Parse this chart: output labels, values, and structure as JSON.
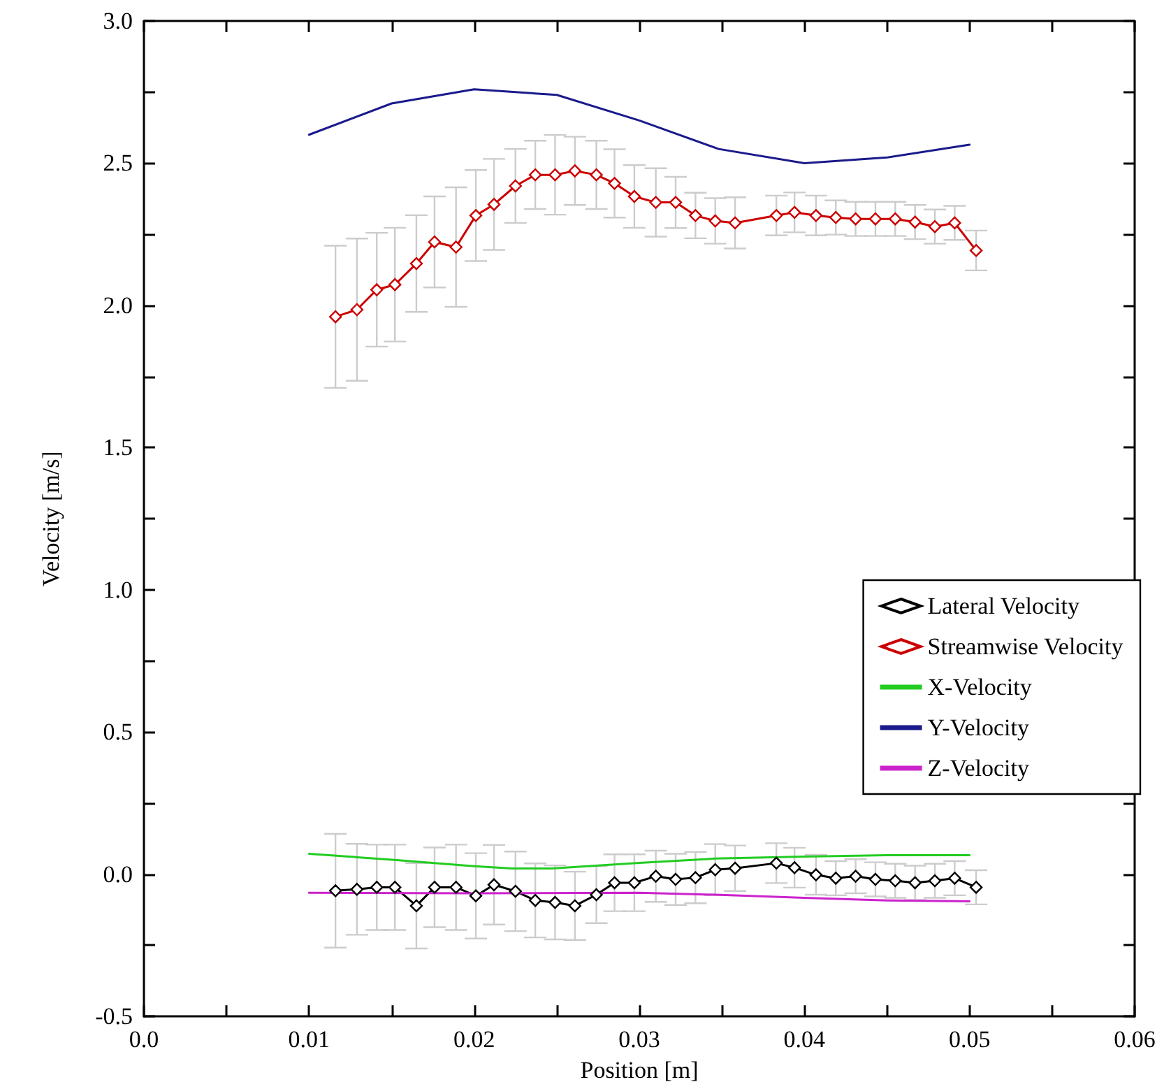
{
  "chart_data": {
    "type": "line",
    "xlabel": "Position [m]",
    "ylabel": "Velocity [m/s]",
    "xlim": [
      0,
      0.06
    ],
    "xticks": [
      {
        "value": 0,
        "label": "0.0"
      },
      {
        "value": 0.005,
        "label": null
      },
      {
        "value": 0.01,
        "label": "0.01"
      },
      {
        "value": 0.015,
        "label": null
      },
      {
        "value": 0.02,
        "label": "0.02"
      },
      {
        "value": 0.025,
        "label": null
      },
      {
        "value": 0.03,
        "label": "0.03"
      },
      {
        "value": 0.035,
        "label": null
      },
      {
        "value": 0.04,
        "label": "0.04"
      },
      {
        "value": 0.045,
        "label": null
      },
      {
        "value": 0.05,
        "label": "0.05"
      },
      {
        "value": 0.055,
        "label": null
      },
      {
        "value": 0.06,
        "label": "0.06"
      }
    ],
    "ylim": [
      -0.5,
      3.0
    ],
    "yticks": [
      {
        "value": -0.5,
        "label": "-0.5"
      },
      {
        "value": -0.25,
        "label": null
      },
      {
        "value": 0,
        "label": "0.0"
      },
      {
        "value": 0.25,
        "label": null
      },
      {
        "value": 0.5,
        "label": "0.5"
      },
      {
        "value": 0.75,
        "label": null
      },
      {
        "value": 1.0,
        "label": "1.0"
      },
      {
        "value": 1.25,
        "label": null
      },
      {
        "value": 1.5,
        "label": "1.5"
      },
      {
        "value": 1.75,
        "label": null
      },
      {
        "value": 2.0,
        "label": "2.0"
      },
      {
        "value": 2.25,
        "label": null
      },
      {
        "value": 2.5,
        "label": "2.5"
      },
      {
        "value": 2.75,
        "label": null
      },
      {
        "value": 3.0,
        "label": "3.0"
      }
    ],
    "grid": false,
    "legend": "right",
    "series": [
      {
        "name": "Lateral Velocity",
        "color": "#000000",
        "marker": "diamond",
        "x": [
          0.0116,
          0.0129,
          0.0141,
          0.0152,
          0.0165,
          0.0176,
          0.0189,
          0.0201,
          0.0212,
          0.0225,
          0.0237,
          0.0249,
          0.0261,
          0.0274,
          0.0285,
          0.0297,
          0.031,
          0.0322,
          0.0334,
          0.0346,
          0.0358,
          0.0383,
          0.0394,
          0.0407,
          0.0419,
          0.0431,
          0.0443,
          0.0455,
          0.0467,
          0.0479,
          0.0491,
          0.0504
        ],
        "values": [
          -0.058,
          -0.053,
          -0.046,
          -0.046,
          -0.111,
          -0.046,
          -0.046,
          -0.076,
          -0.037,
          -0.06,
          -0.092,
          -0.099,
          -0.111,
          -0.072,
          -0.03,
          -0.03,
          -0.007,
          -0.018,
          -0.012,
          0.016,
          0.021,
          0.039,
          0.023,
          -0.002,
          -0.014,
          -0.007,
          -0.018,
          -0.023,
          -0.03,
          -0.023,
          -0.014,
          -0.046
        ],
        "errors": [
          0.2,
          0.16,
          0.15,
          0.15,
          0.15,
          0.14,
          0.15,
          0.15,
          0.14,
          0.14,
          0.13,
          0.13,
          0.12,
          0.1,
          0.1,
          0.1,
          0.09,
          0.09,
          0.09,
          0.09,
          0.08,
          0.07,
          0.07,
          0.07,
          0.06,
          0.06,
          0.06,
          0.06,
          0.06,
          0.06,
          0.06,
          0.06
        ]
      },
      {
        "name": "Streamwise Velocity",
        "color": "#cc0000",
        "marker": "diamond",
        "x": [
          0.0116,
          0.0129,
          0.0141,
          0.0152,
          0.0165,
          0.0176,
          0.0189,
          0.0201,
          0.0212,
          0.0225,
          0.0237,
          0.0249,
          0.0261,
          0.0274,
          0.0285,
          0.0297,
          0.031,
          0.0322,
          0.0334,
          0.0346,
          0.0358,
          0.0383,
          0.0394,
          0.0407,
          0.0419,
          0.0431,
          0.0443,
          0.0455,
          0.0467,
          0.0479,
          0.0491,
          0.0504
        ],
        "values": [
          1.96,
          1.985,
          2.055,
          2.073,
          2.147,
          2.223,
          2.205,
          2.316,
          2.355,
          2.42,
          2.459,
          2.459,
          2.473,
          2.459,
          2.429,
          2.383,
          2.362,
          2.362,
          2.316,
          2.297,
          2.29,
          2.316,
          2.327,
          2.316,
          2.309,
          2.304,
          2.304,
          2.304,
          2.293,
          2.277,
          2.29,
          2.193
        ],
        "errors": [
          0.25,
          0.25,
          0.2,
          0.2,
          0.17,
          0.16,
          0.21,
          0.16,
          0.16,
          0.13,
          0.12,
          0.14,
          0.12,
          0.12,
          0.12,
          0.11,
          0.12,
          0.09,
          0.08,
          0.08,
          0.09,
          0.07,
          0.07,
          0.07,
          0.06,
          0.06,
          0.06,
          0.06,
          0.06,
          0.06,
          0.06,
          0.07
        ]
      },
      {
        "name": "X-Velocity",
        "color": "#22cc22",
        "marker": "none",
        "x": [
          0.01,
          0.0153,
          0.02,
          0.0223,
          0.0247,
          0.03,
          0.0346,
          0.04,
          0.045,
          0.05
        ],
        "values": [
          0.072,
          0.05,
          0.028,
          0.02,
          0.02,
          0.04,
          0.055,
          0.062,
          0.067,
          0.067
        ]
      },
      {
        "name": "Y-Velocity",
        "color": "#1a1a8c",
        "marker": "none",
        "x": [
          0.01,
          0.015,
          0.02,
          0.025,
          0.03,
          0.0348,
          0.04,
          0.045,
          0.05
        ],
        "values": [
          2.6,
          2.71,
          2.76,
          2.74,
          2.65,
          2.55,
          2.5,
          2.52,
          2.565
        ]
      },
      {
        "name": "Z-Velocity",
        "color": "#cc22cc",
        "marker": "none",
        "x": [
          0.01,
          0.02,
          0.03,
          0.0346,
          0.04,
          0.045,
          0.05
        ],
        "values": [
          -0.065,
          -0.067,
          -0.065,
          -0.072,
          -0.083,
          -0.092,
          -0.095
        ]
      }
    ]
  }
}
